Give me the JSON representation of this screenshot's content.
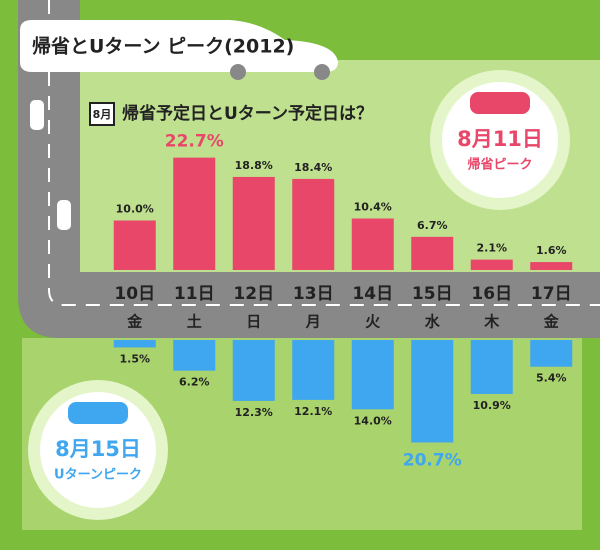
{
  "chart_data": {
    "type": "bar",
    "title": "帰省とUターン ピーク(2012)",
    "subtitle": "帰省予定日とUターン予定日は？",
    "month_icon": "8月",
    "categories": [
      "10日",
      "11日",
      "12日",
      "13日",
      "14日",
      "15日",
      "16日",
      "17日"
    ],
    "weekdays": [
      "金",
      "土",
      "日",
      "月",
      "火",
      "水",
      "木",
      "金"
    ],
    "series": [
      {
        "color": "#e9476a",
        "values": [
          10.0,
          22.7,
          18.8,
          18.4,
          10.4,
          6.7,
          2.1,
          1.6
        ],
        "value_labels": [
          "10.0%",
          "22.7%",
          "18.8%",
          "18.4%",
          "10.4%",
          "6.7%",
          "2.1%",
          "1.6%"
        ]
      },
      {
        "color": "#3fa6f0",
        "values": [
          1.5,
          6.2,
          12.3,
          12.1,
          14.0,
          20.7,
          10.9,
          5.4
        ],
        "value_labels": [
          "1.5%",
          "6.2%",
          "12.3%",
          "12.1%",
          "14.0%",
          "20.7%",
          "10.9%",
          "5.4%"
        ]
      }
    ],
    "annotations": [
      {
        "date": "8月11日",
        "label": "帰省ピーク",
        "color": "#e9476a"
      },
      {
        "date": "8月15日",
        "label": "Uターンピーク",
        "color": "#3fa6f0"
      }
    ]
  }
}
